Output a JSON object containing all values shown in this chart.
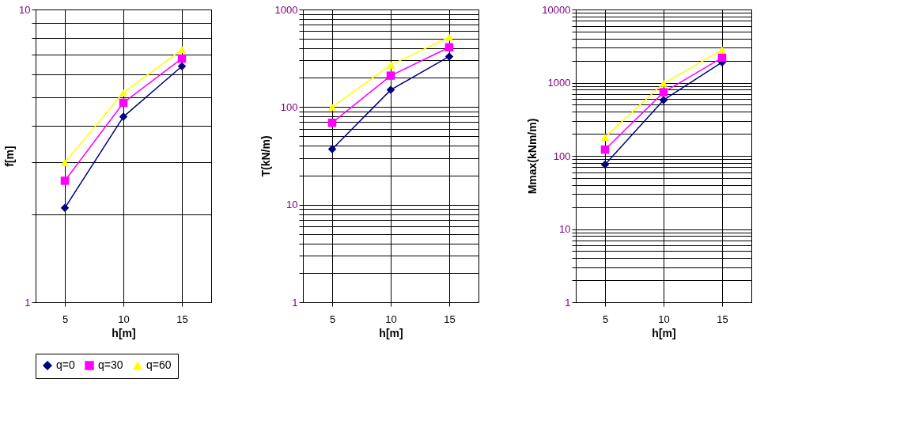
{
  "chart_data": [
    {
      "type": "line",
      "xlabel": "h[m]",
      "ylabel": "f[m]",
      "categories": [
        "5",
        "10",
        "15"
      ],
      "log": true,
      "grid": true,
      "legend": "bottom",
      "ylim": [
        1,
        10
      ],
      "yticks": [
        1,
        {
          "value": 2,
          "label": null
        },
        {
          "value": 3,
          "label": null
        },
        {
          "value": 4,
          "label": null
        },
        {
          "value": 5,
          "label": null
        },
        {
          "value": 6,
          "label": null
        },
        {
          "value": 7,
          "label": null
        },
        {
          "value": 8,
          "label": null
        },
        {
          "value": 9,
          "label": null
        },
        10
      ],
      "series": [
        {
          "name": "q=0",
          "color": "#000080",
          "marker": "diamond",
          "values": [
            2.1,
            4.3,
            6.4
          ]
        },
        {
          "name": "q=30",
          "color": "#ff00ff",
          "marker": "square",
          "values": [
            2.6,
            4.8,
            6.8
          ]
        },
        {
          "name": "q=60",
          "color": "#ffff00",
          "marker": "triangle",
          "values": [
            3.0,
            5.2,
            7.3
          ]
        }
      ]
    },
    {
      "type": "line",
      "xlabel": "h[m]",
      "ylabel": "T(kN/m)",
      "categories": [
        "5",
        "10",
        "15"
      ],
      "log": true,
      "grid": true,
      "legend": "bottom",
      "ylim": [
        1,
        1000
      ],
      "yticks": [
        1,
        {
          "value": 2,
          "label": null
        },
        {
          "value": 3,
          "label": null
        },
        {
          "value": 4,
          "label": null
        },
        {
          "value": 5,
          "label": null
        },
        {
          "value": 6,
          "label": null
        },
        {
          "value": 7,
          "label": null
        },
        {
          "value": 8,
          "label": null
        },
        {
          "value": 9,
          "label": null
        },
        10,
        {
          "value": 20,
          "label": null
        },
        {
          "value": 30,
          "label": null
        },
        {
          "value": 40,
          "label": null
        },
        {
          "value": 50,
          "label": null
        },
        {
          "value": 60,
          "label": null
        },
        {
          "value": 70,
          "label": null
        },
        {
          "value": 80,
          "label": null
        },
        {
          "value": 90,
          "label": null
        },
        100,
        {
          "value": 200,
          "label": null
        },
        {
          "value": 300,
          "label": null
        },
        {
          "value": 400,
          "label": null
        },
        {
          "value": 500,
          "label": null
        },
        {
          "value": 600,
          "label": null
        },
        {
          "value": 700,
          "label": null
        },
        {
          "value": 800,
          "label": null
        },
        {
          "value": 900,
          "label": null
        },
        1000
      ],
      "series": [
        {
          "name": "q=0",
          "color": "#000080",
          "marker": "diamond",
          "values": [
            37,
            150,
            330
          ]
        },
        {
          "name": "q=30",
          "color": "#ff00ff",
          "marker": "square",
          "values": [
            69,
            210,
            410
          ]
        },
        {
          "name": "q=60",
          "color": "#ffff00",
          "marker": "triangle",
          "values": [
            100,
            270,
            520
          ]
        }
      ]
    },
    {
      "type": "line",
      "xlabel": "h[m]",
      "ylabel": "Mmax(kNm/m)",
      "categories": [
        "5",
        "10",
        "15"
      ],
      "log": true,
      "grid": true,
      "legend": "bottom",
      "ylim": [
        1,
        10000
      ],
      "yticks": [
        1,
        {
          "value": 2,
          "label": null
        },
        {
          "value": 3,
          "label": null
        },
        {
          "value": 4,
          "label": null
        },
        {
          "value": 5,
          "label": null
        },
        {
          "value": 6,
          "label": null
        },
        {
          "value": 7,
          "label": null
        },
        {
          "value": 8,
          "label": null
        },
        {
          "value": 9,
          "label": null
        },
        10,
        {
          "value": 20,
          "label": null
        },
        {
          "value": 30,
          "label": null
        },
        {
          "value": 40,
          "label": null
        },
        {
          "value": 50,
          "label": null
        },
        {
          "value": 60,
          "label": null
        },
        {
          "value": 70,
          "label": null
        },
        {
          "value": 80,
          "label": null
        },
        {
          "value": 90,
          "label": null
        },
        100,
        {
          "value": 200,
          "label": null
        },
        {
          "value": 300,
          "label": null
        },
        {
          "value": 400,
          "label": null
        },
        {
          "value": 500,
          "label": null
        },
        {
          "value": 600,
          "label": null
        },
        {
          "value": 700,
          "label": null
        },
        {
          "value": 800,
          "label": null
        },
        {
          "value": 900,
          "label": null
        },
        1000,
        {
          "value": 2000,
          "label": null
        },
        {
          "value": 3000,
          "label": null
        },
        {
          "value": 4000,
          "label": null
        },
        {
          "value": 5000,
          "label": null
        },
        {
          "value": 6000,
          "label": null
        },
        {
          "value": 7000,
          "label": null
        },
        {
          "value": 8000,
          "label": null
        },
        {
          "value": 9000,
          "label": null
        },
        10000
      ],
      "series": [
        {
          "name": "q=0",
          "color": "#000080",
          "marker": "diamond",
          "values": [
            76,
            580,
            1900
          ]
        },
        {
          "name": "q=30",
          "color": "#ff00ff",
          "marker": "square",
          "values": [
            122,
            740,
            2200
          ]
        },
        {
          "name": "q=60",
          "color": "#ffff00",
          "marker": "triangle",
          "values": [
            180,
            980,
            2800
          ]
        }
      ]
    }
  ]
}
